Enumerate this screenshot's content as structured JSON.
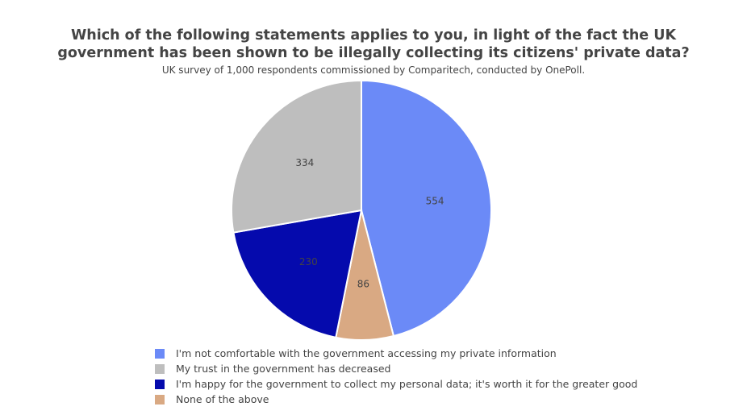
{
  "chart_data": {
    "type": "pie",
    "title_line1": "Which of the following statements applies to you, in light of the fact the UK",
    "title_line2": "government has been shown to be illegally collecting its citizens' private data?",
    "subtitle": "UK survey of 1,000 respondents commissioned by Comparitech, conducted by OnePoll.",
    "slices": [
      {
        "label": "I'm not comfortable with the government accessing my private information",
        "value": 554,
        "color": "#6b8af7",
        "text_color": "#444444"
      },
      {
        "label": "None of the above",
        "value": 86,
        "color": "#d9a983",
        "text_color": "#444444"
      },
      {
        "label": "I'm happy for the government to collect my personal data; it's worth it for the greater good",
        "value": 230,
        "color": "#050aad",
        "text_color": "#444444"
      },
      {
        "label": "My trust in the government has decreased",
        "value": 334,
        "color": "#bebebe",
        "text_color": "#444444"
      }
    ],
    "legend": [
      {
        "label": "I'm not comfortable with the government accessing my private information",
        "color": "#6b8af7"
      },
      {
        "label": "My trust in the government has decreased",
        "color": "#bebebe"
      },
      {
        "label": "I'm happy for the government to collect my personal data; it's worth it for the greater good",
        "color": "#050aad"
      },
      {
        "label": "None of the above",
        "color": "#d9a983"
      }
    ],
    "legend_position": "bottom"
  }
}
